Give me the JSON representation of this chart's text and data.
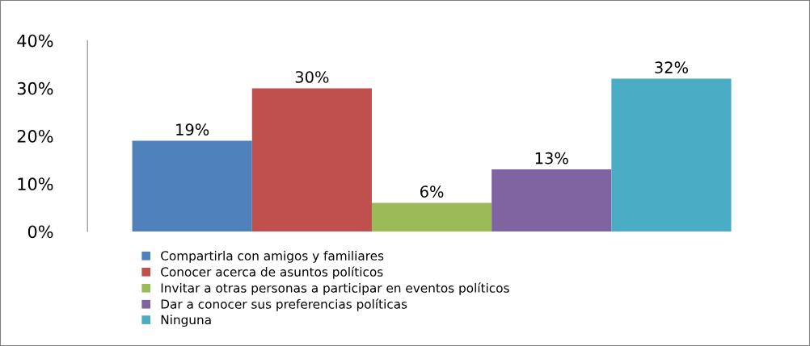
{
  "chart_data": {
    "type": "bar",
    "categories": [
      null
    ],
    "series": [
      {
        "name": "Compartirla con amigos y familiares",
        "color": "#4f81bd",
        "values": [
          19
        ],
        "value_labels": [
          "19%"
        ]
      },
      {
        "name": "Conocer acerca de asuntos políticos",
        "color": "#c0504d",
        "values": [
          30
        ],
        "value_labels": [
          "30%"
        ]
      },
      {
        "name": "Invitar a otras personas a participar en eventos políticos",
        "color": "#9bbb59",
        "values": [
          6
        ],
        "value_labels": [
          "6%"
        ]
      },
      {
        "name": "Dar a conocer sus preferencias políticas",
        "color": "#8064a2",
        "values": [
          13
        ],
        "value_labels": [
          "13%"
        ]
      },
      {
        "name": "Ninguna",
        "color": "#4bacc6",
        "values": [
          32
        ],
        "value_labels": [
          "32%"
        ]
      }
    ],
    "ylim": [
      0,
      40
    ],
    "yticks": [
      {
        "value": 0,
        "label": "0%"
      },
      {
        "value": 10,
        "label": "10%"
      },
      {
        "value": 20,
        "label": "20%"
      },
      {
        "value": 30,
        "label": "30%"
      },
      {
        "value": 40,
        "label": "40%"
      }
    ],
    "grid": false,
    "legend": "bottom"
  }
}
